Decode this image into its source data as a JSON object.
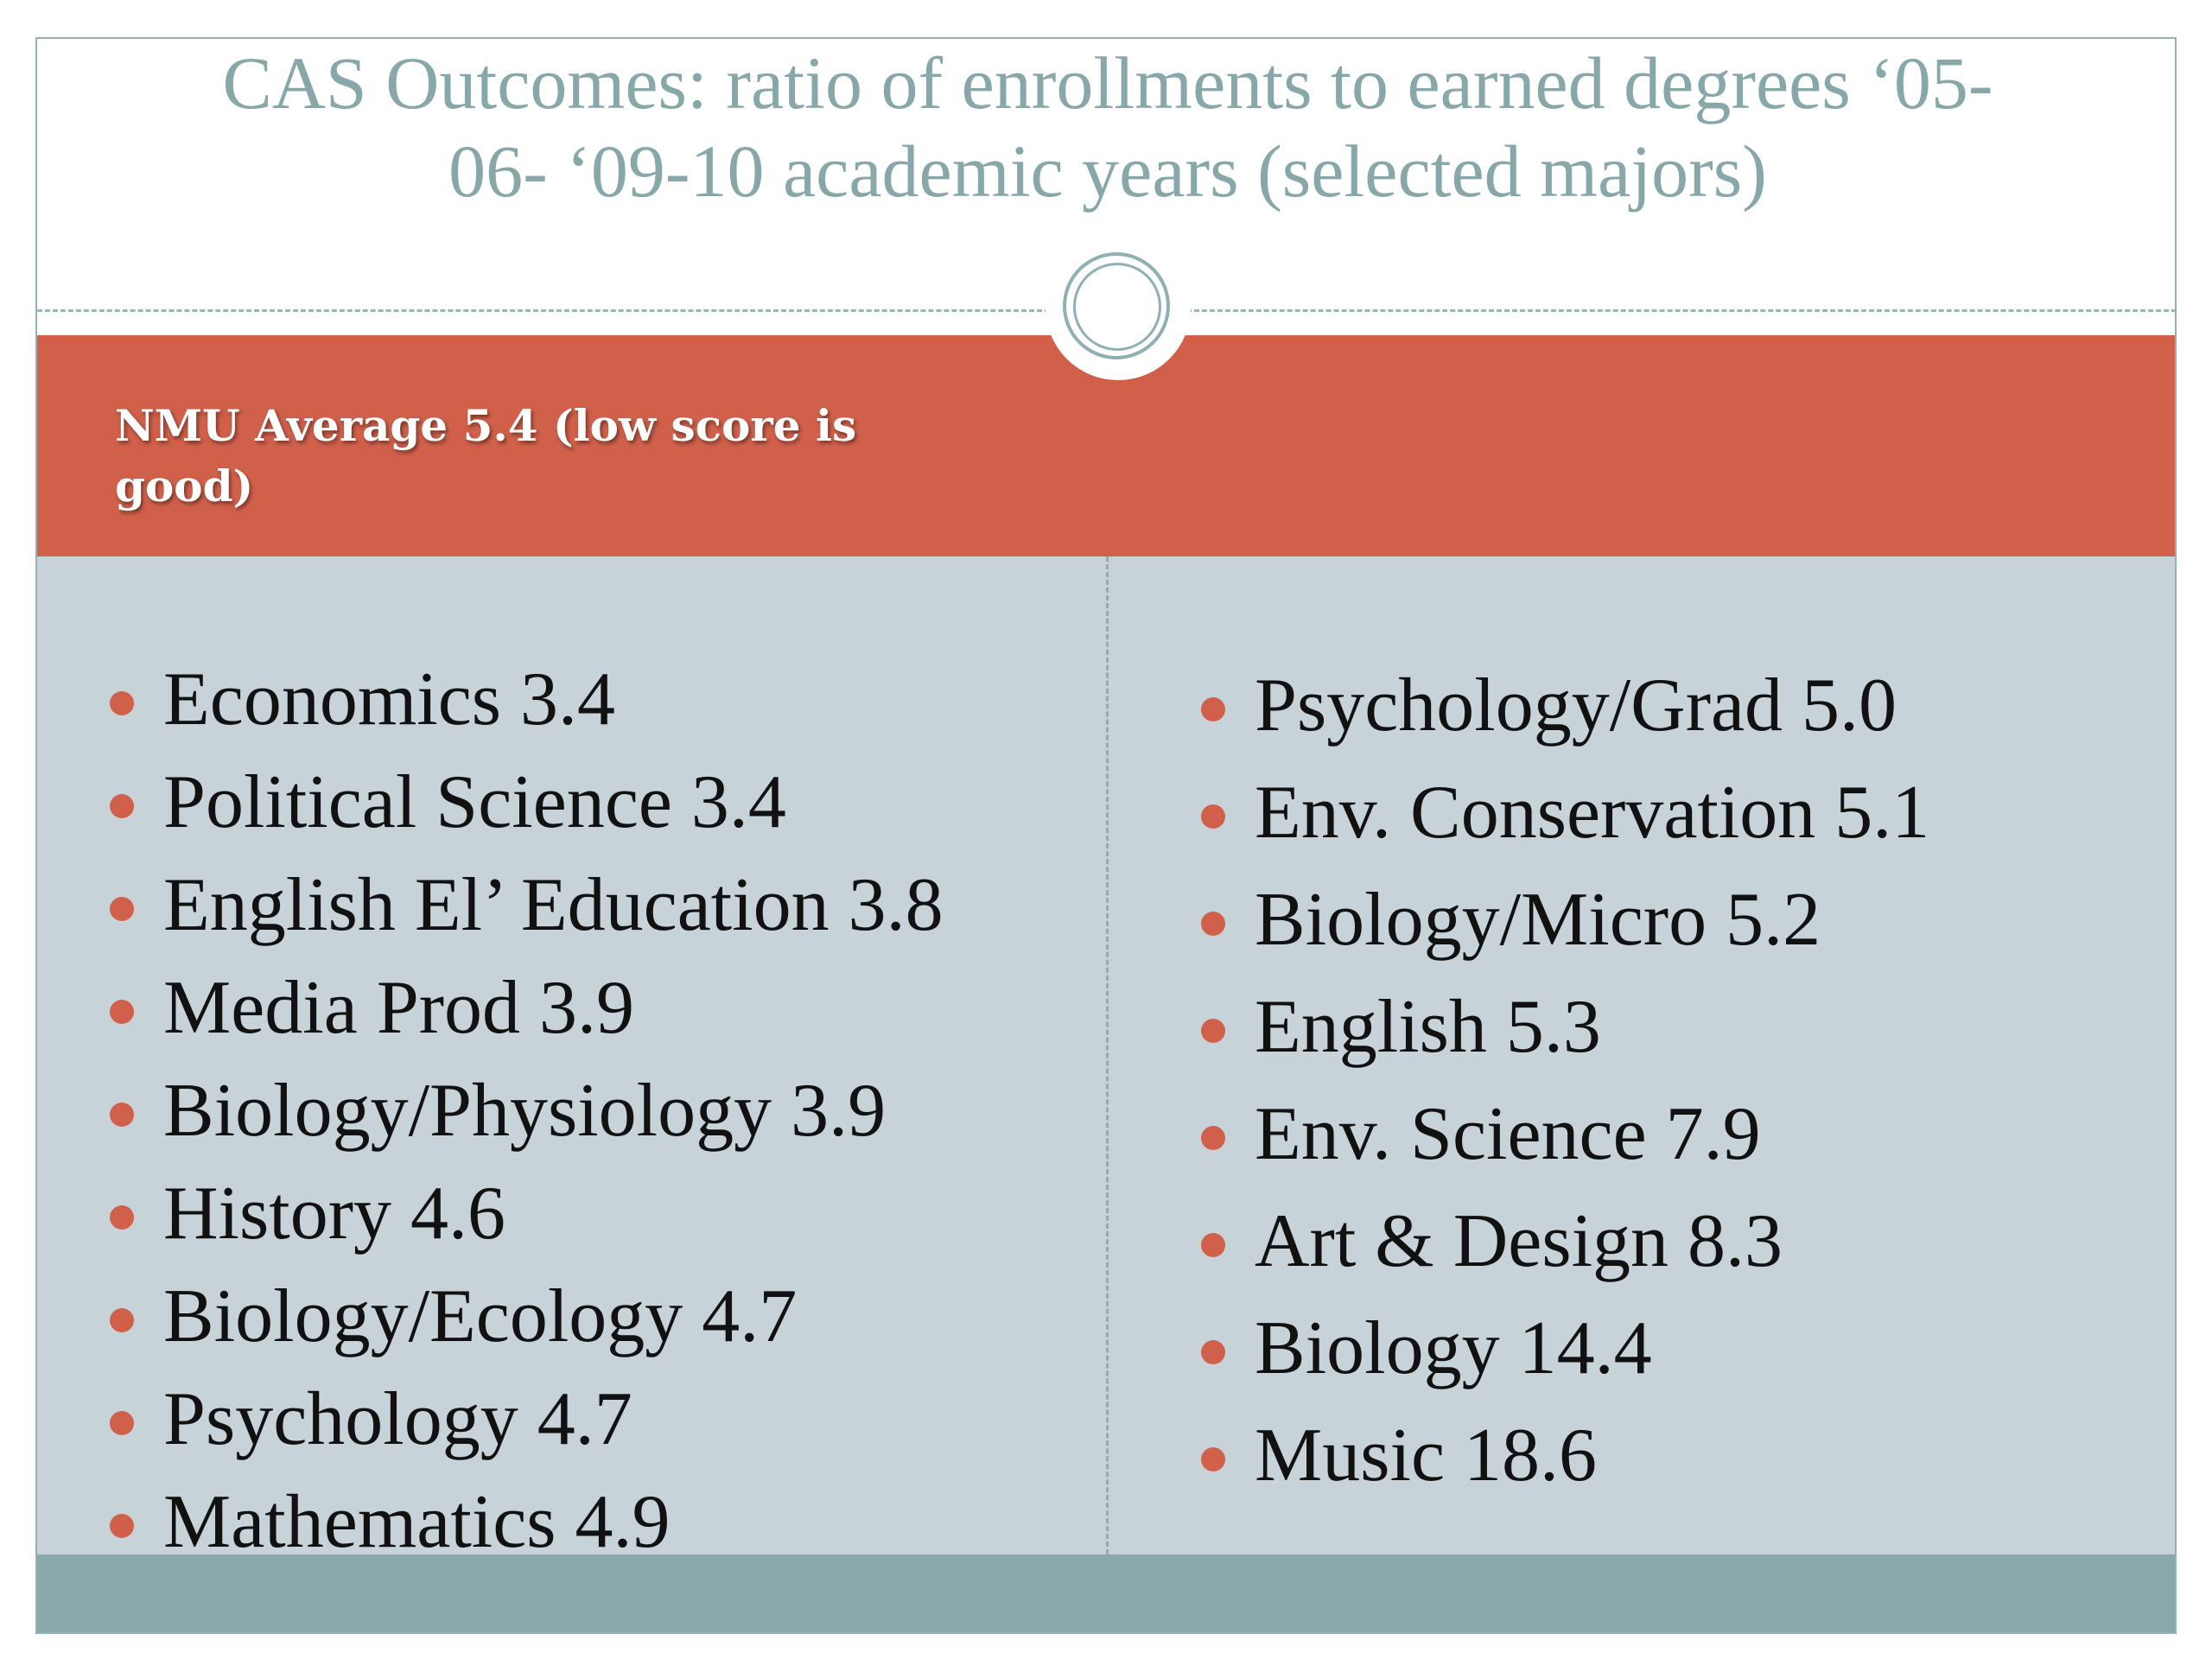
{
  "title": {
    "line1": "CAS Outcomes: ratio of enrollments to earned degrees ‘05-",
    "line2": "06- ‘09-10 academic years (selected majors)"
  },
  "banner": {
    "line1": "NMU Average 5.4  (low score is",
    "line2": "good)"
  },
  "left_list": [
    "Economics 3.4",
    "Political Science 3.4",
    "English El’ Education 3.8",
    "Media Prod 3.9",
    "Biology/Physiology 3.9",
    "History 4.6",
    "Biology/Ecology 4.7",
    "Psychology 4.7",
    "Mathematics 4.9"
  ],
  "right_list": [
    "Psychology/Grad 5.0",
    "Env. Conservation 5.1",
    "Biology/Micro 5.2",
    "English 5.3",
    "Env. Science 7.9",
    "Art & Design 8.3",
    "Biology 14.4",
    "Music 18.6"
  ],
  "colors": {
    "accent": "#d0604a",
    "title": "#87a7a9",
    "panel": "#c7d3d8",
    "footer": "#8aa9ab"
  }
}
